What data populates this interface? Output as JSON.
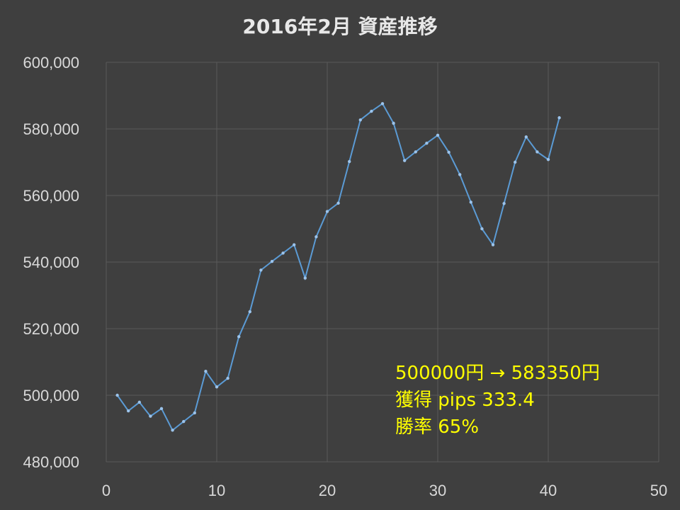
{
  "background": "#3f3f3f",
  "line_color": "#5b9bd5",
  "annotation_color": "#ffff00",
  "annotations": {
    "result": "500000円 → 583350円",
    "pips": "獲得 pips  333.4",
    "win_rate": "勝率 65%"
  },
  "chart_data": {
    "type": "line",
    "title": "2016年2月 資産推移",
    "xlabel": "",
    "ylabel": "",
    "xlim": [
      0,
      50
    ],
    "ylim": [
      480000,
      600000
    ],
    "x_ticks": [
      0,
      10,
      20,
      30,
      40,
      50
    ],
    "y_ticks": [
      480000,
      500000,
      520000,
      540000,
      560000,
      580000,
      600000
    ],
    "y_tick_labels": [
      "480,000",
      "500,000",
      "520,000",
      "540,000",
      "560,000",
      "580,000",
      "600,000"
    ],
    "grid": true,
    "legend": "none",
    "series": [
      {
        "x": [
          1,
          2,
          3,
          4,
          5,
          6,
          7,
          8,
          9,
          10,
          11,
          12,
          13,
          14,
          15,
          16,
          17,
          18,
          19,
          20,
          21,
          22,
          23,
          24,
          25,
          26,
          27,
          28,
          29,
          30,
          31,
          32,
          33,
          34,
          35,
          36,
          37,
          38,
          39,
          40,
          41
        ],
        "values": [
          500000,
          495300,
          497900,
          493700,
          496000,
          489500,
          492100,
          494700,
          507200,
          502500,
          505100,
          517600,
          525100,
          537600,
          540200,
          542700,
          545200,
          535200,
          547600,
          555200,
          557700,
          570200,
          582700,
          585300,
          587600,
          581700,
          570500,
          573100,
          575700,
          578100,
          573000,
          566300,
          558000,
          550000,
          545200,
          557600,
          570000,
          577600,
          573100,
          570800,
          583350
        ]
      }
    ]
  }
}
